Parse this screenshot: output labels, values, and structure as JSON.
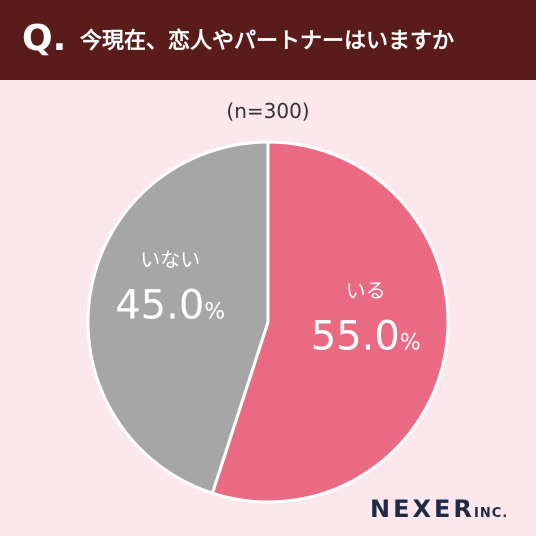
{
  "header": {
    "mark": "Q.",
    "title": "今現在、恋人やパートナーはいますか"
  },
  "chart_data": {
    "type": "pie",
    "subtitle": "(n=300)",
    "categories": [
      "いる",
      "いない"
    ],
    "values": [
      55.0,
      45.0
    ],
    "value_labels": [
      "55.0%",
      "45.0%"
    ],
    "colors": [
      "#ea6a84",
      "#a6a6a6"
    ]
  },
  "footer": {
    "brand": "NEXER",
    "suffix": "INC."
  }
}
